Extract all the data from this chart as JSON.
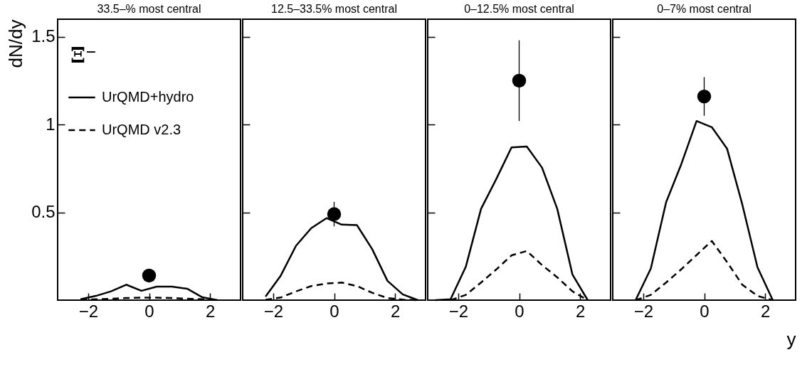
{
  "chart_data": [
    {
      "type": "line",
      "title": "33.5–% most central",
      "ylabel": "dN/dy",
      "annotations": [
        "Ξ⁻"
      ],
      "legend": "top left",
      "xlim": [
        -3,
        3
      ],
      "ylim": [
        0,
        1.6
      ],
      "xticks": [
        -2,
        0,
        2
      ],
      "yticks": [
        0.5,
        1,
        1.5
      ],
      "grid": false,
      "series": [
        {
          "name": "UrQMD+hydro",
          "color": "#000000",
          "line_style": "solid",
          "x": [
            -2.25,
            -1.75,
            -1.25,
            -0.75,
            -0.25,
            0.25,
            0.75,
            1.25,
            1.75,
            2.25
          ],
          "values": [
            0.005,
            0.024,
            0.05,
            0.088,
            0.053,
            0.077,
            0.077,
            0.065,
            0.016,
            0.0
          ]
        },
        {
          "name": "UrQMD v2.3",
          "color": "#000000",
          "line_style": "dashed",
          "x": [
            -2.25,
            -1.75,
            -1.25,
            -0.75,
            -0.25,
            0.25,
            0.75,
            1.25,
            1.75,
            2.25
          ],
          "values": [
            0.002,
            0.005,
            0.008,
            0.012,
            0.014,
            0.014,
            0.012,
            0.008,
            0.005,
            0.002
          ]
        },
        {
          "type": "scatter",
          "color": "#000000",
          "marker": "circle",
          "x": [
            0
          ],
          "values": [
            0.14
          ],
          "errors": [
            null
          ]
        }
      ]
    },
    {
      "type": "line",
      "title": "12.5–33.5% most central",
      "tick_labels": "x",
      "xlim": [
        -3,
        3
      ],
      "ylim": [
        0,
        1.6
      ],
      "xticks": [
        -2,
        0,
        2
      ],
      "yticks": [
        0.5,
        1,
        1.5
      ],
      "grid": false,
      "series": [
        {
          "color": "#000000",
          "line_style": "solid",
          "x": [
            -2.25,
            -1.75,
            -1.25,
            -0.75,
            -0.25,
            0.25,
            0.75,
            1.25,
            1.75,
            2.25,
            2.75
          ],
          "values": [
            0.02,
            0.14,
            0.31,
            0.41,
            0.467,
            0.43,
            0.427,
            0.29,
            0.11,
            0.033,
            0.0
          ]
        },
        {
          "color": "#000000",
          "line_style": "dashed",
          "x": [
            -2.25,
            -1.75,
            -1.25,
            -0.75,
            -0.25,
            0.25,
            0.75,
            1.25,
            1.75,
            2.25,
            2.75
          ],
          "values": [
            0.002,
            0.015,
            0.05,
            0.08,
            0.095,
            0.1,
            0.08,
            0.042,
            0.012,
            0.003,
            0.0
          ]
        },
        {
          "type": "scatter",
          "color": "#000000",
          "marker": "circle",
          "x": [
            0
          ],
          "values": [
            0.49
          ],
          "errors": [
            0.07
          ]
        }
      ]
    },
    {
      "type": "line",
      "title": "0–12.5% most central",
      "tick_labels": "x",
      "xlim": [
        -3,
        3
      ],
      "ylim": [
        0,
        1.6
      ],
      "xticks": [
        -2,
        0,
        2
      ],
      "yticks": [
        0.5,
        1,
        1.5
      ],
      "grid": false,
      "series": [
        {
          "color": "#000000",
          "line_style": "solid",
          "x": [
            -2.75,
            -2.25,
            -1.75,
            -1.25,
            -0.75,
            -0.25,
            0.25,
            0.75,
            1.25,
            1.75,
            2.25
          ],
          "values": [
            0.0,
            0.005,
            0.19,
            0.52,
            0.69,
            0.87,
            0.875,
            0.755,
            0.52,
            0.145,
            0.0
          ]
        },
        {
          "color": "#000000",
          "line_style": "dashed",
          "x": [
            -2.25,
            -1.75,
            -1.25,
            -0.75,
            -0.25,
            0.25,
            0.75,
            1.25,
            1.75,
            2.25
          ],
          "values": [
            0.0,
            0.03,
            0.1,
            0.175,
            0.255,
            0.28,
            0.2,
            0.13,
            0.05,
            0.0
          ]
        },
        {
          "type": "scatter",
          "color": "#000000",
          "marker": "circle",
          "x": [
            0
          ],
          "values": [
            1.25
          ],
          "errors": [
            0.23
          ]
        }
      ]
    },
    {
      "type": "line",
      "title": "0–7% most central",
      "xlabel": "y",
      "tick_labels": "x",
      "xlim": [
        -3,
        3
      ],
      "ylim": [
        0,
        1.6
      ],
      "xticks": [
        -2,
        0,
        2
      ],
      "yticks": [
        0.5,
        1,
        1.5
      ],
      "grid": false,
      "series": [
        {
          "color": "#000000",
          "line_style": "solid",
          "x": [
            -2.25,
            -1.75,
            -1.25,
            -0.75,
            -0.25,
            0.25,
            0.75,
            1.25,
            1.75,
            2.25
          ],
          "values": [
            0.0,
            0.18,
            0.557,
            0.775,
            1.02,
            0.985,
            0.863,
            0.545,
            0.186,
            0.0
          ]
        },
        {
          "color": "#000000",
          "line_style": "dashed",
          "x": [
            -2.25,
            -1.75,
            -1.25,
            -0.75,
            -0.25,
            0.25,
            0.75,
            1.25,
            1.75,
            2.25
          ],
          "values": [
            0.0,
            0.03,
            0.1,
            0.176,
            0.257,
            0.337,
            0.217,
            0.088,
            0.024,
            0.0
          ]
        },
        {
          "type": "scatter",
          "color": "#000000",
          "marker": "circle",
          "x": [
            0
          ],
          "values": [
            1.16
          ],
          "errors": [
            0.11
          ]
        }
      ]
    }
  ]
}
